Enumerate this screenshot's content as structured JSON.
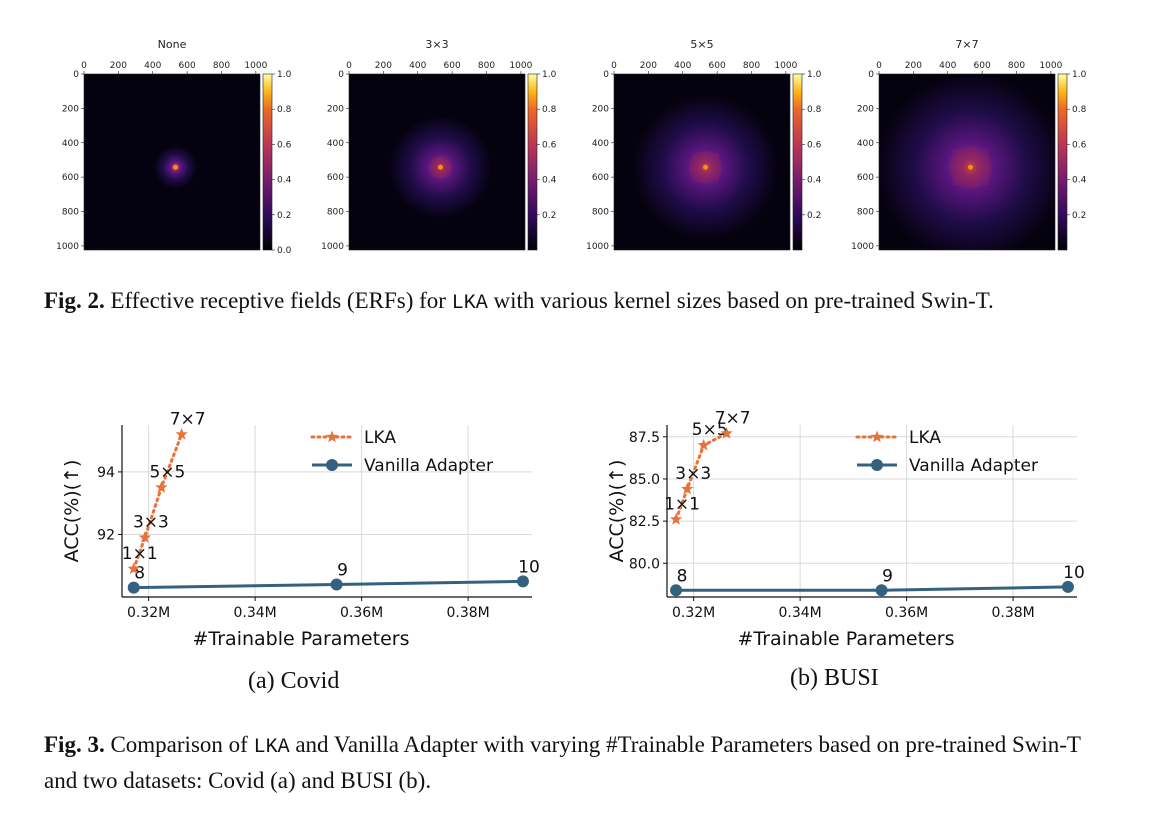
{
  "figure2": {
    "panels": [
      {
        "title": "None",
        "spread": 0.18,
        "intensity": 0.9,
        "extra": 0
      },
      {
        "title": "3×3",
        "spread": 0.6,
        "intensity": 0.9,
        "extra": 0.25
      },
      {
        "title": "5×5",
        "spread": 0.9,
        "intensity": 0.9,
        "extra": 0.35
      },
      {
        "title": "7×7",
        "spread": 1.2,
        "intensity": 0.8,
        "extra": 0.45
      }
    ],
    "axis_ticks_x": [
      "0",
      "200",
      "400",
      "600",
      "800",
      "1000"
    ],
    "axis_ticks_y": [
      "0",
      "200",
      "400",
      "600",
      "800",
      "1000"
    ],
    "colorbar_ticks_first": [
      "1.0",
      "0.8",
      "0.6",
      "0.4",
      "0.2",
      "0.0"
    ],
    "colorbar_ticks_rest": [
      "1.0",
      "0.8",
      "0.6",
      "0.4",
      "0.2"
    ],
    "caption_label": "Fig. 2.",
    "caption_text_1": " Effective receptive fields (ERFs) for ",
    "caption_code": "LKA",
    "caption_text_2": " with various kernel sizes based on pre-trained Swin-T."
  },
  "figure3": {
    "caption_label": "Fig. 3.",
    "caption_text_1": " Comparison of ",
    "caption_code": "LKA",
    "caption_text_2": " and Vanilla Adapter with varying #Trainable Parameters based on pre-trained Swin-T and two datasets: Covid (a) and BUSI (b).",
    "subcaption_a": "(a) Covid",
    "subcaption_b": "(b) BUSI"
  },
  "chart_data": [
    {
      "type": "line",
      "xlabel": "#Trainable Parameters",
      "ylabel": "ACC(%)(↑)",
      "xlim": [
        0.315,
        0.392
      ],
      "ylim": [
        90.0,
        95.5
      ],
      "xticks": [
        0.32,
        0.34,
        0.36,
        0.38
      ],
      "xtick_labels": [
        "0.32M",
        "0.34M",
        "0.36M",
        "0.38M"
      ],
      "yticks": [
        92,
        94
      ],
      "ytick_labels": [
        "92",
        "94"
      ],
      "grid": true,
      "legend": "top-right",
      "series": [
        {
          "name": "LKA",
          "color": "#e8733a",
          "style": "dotted-star",
          "x": [
            0.3172,
            0.3193,
            0.3224,
            0.3262
          ],
          "y": [
            90.9,
            91.9,
            93.5,
            95.2
          ],
          "labels": [
            "1×1",
            "3×3",
            "5×5",
            "7×7"
          ]
        },
        {
          "name": "Vanilla Adapter",
          "color": "#33617f",
          "style": "solid-circle",
          "x": [
            0.3172,
            0.3553,
            0.3903
          ],
          "y": [
            90.3,
            90.4,
            90.5
          ],
          "labels": [
            "8",
            "9",
            "10"
          ]
        }
      ]
    },
    {
      "type": "line",
      "xlabel": "#Trainable Parameters",
      "ylabel": "ACC(%)(↑)",
      "xlim": [
        0.315,
        0.392
      ],
      "ylim": [
        78.0,
        88.2
      ],
      "xticks": [
        0.32,
        0.34,
        0.36,
        0.38
      ],
      "xtick_labels": [
        "0.32M",
        "0.34M",
        "0.36M",
        "0.38M"
      ],
      "yticks": [
        80.0,
        82.5,
        85.0,
        87.5
      ],
      "ytick_labels": [
        "80.0",
        "82.5",
        "85.0",
        "87.5"
      ],
      "grid": true,
      "legend": "top-right",
      "series": [
        {
          "name": "LKA",
          "color": "#e8733a",
          "style": "dotted-star",
          "x": [
            0.3167,
            0.3188,
            0.3219,
            0.3262
          ],
          "y": [
            82.6,
            84.4,
            87.0,
            87.7
          ],
          "labels": [
            "1×1",
            "3×3",
            "5×5",
            "7×7"
          ]
        },
        {
          "name": "Vanilla Adapter",
          "color": "#33617f",
          "style": "solid-circle",
          "x": [
            0.3167,
            0.3553,
            0.3903
          ],
          "y": [
            78.4,
            78.4,
            78.6
          ],
          "labels": [
            "8",
            "9",
            "10"
          ]
        }
      ]
    }
  ]
}
